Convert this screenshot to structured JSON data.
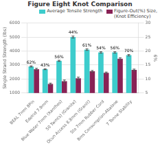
{
  "chart_data": {
    "type": "bar",
    "title": "Figure Eight Knot Comparison",
    "categories": [
      "BEAL 7mm 8Pin",
      "Edelrid 7.9mm",
      "Blue Water 7mm (Xanthos)",
      "50 Twm(s) (Granite)",
      "Ocun Access 8.8mm (Granit)",
      "Sto 7mm Rubber Cord",
      "Bms Consumption-Abalone",
      "7 Tonne Stability"
    ],
    "series": [
      {
        "name": "Average Tensile Strength",
        "color": "#3DCCCC",
        "values": [
          2900,
          2700,
          3300,
          5000,
          4100,
          3900,
          3900,
          3700
        ],
        "errors": [
          40,
          30,
          40,
          70,
          60,
          50,
          50,
          50
        ]
      },
      {
        "name": "Figure-Out(%) Size,\n(Knot Efficiency)",
        "color": "#882255",
        "values": [
          2700,
          1650,
          1850,
          2050,
          2550,
          2450,
          3450,
          2650
        ],
        "errors": [
          70,
          60,
          80,
          90,
          60,
          50,
          70,
          60
        ]
      }
    ],
    "ylabel": "Single Strand Strength (lbs)",
    "y2label": "6%",
    "ylim": [
      1000,
      6000
    ],
    "yticks": [
      1000,
      2000,
      3000,
      4000,
      5000,
      6000
    ],
    "y2lim": [
      5,
      30
    ],
    "y2ticks": [
      5,
      10,
      15,
      20,
      25,
      30
    ],
    "annotations": [
      {
        "category": "BEAL 7mm 8Pin",
        "series": "Average Tensile Strength",
        "text": "62%"
      },
      {
        "category": "Edelrid 7.9mm",
        "series": "Average Tensile Strength",
        "text": "43%"
      },
      {
        "category": "Blue Water 7mm (Xanthos)",
        "series": "Average Tensile Strength",
        "text": "56%"
      },
      {
        "category": "50 Twm(s) (Granite)",
        "series": "Average Tensile Strength",
        "text": "44%"
      },
      {
        "category": "Ocun Access 8.8mm (Granit)",
        "series": "Average Tensile Strength",
        "text": "61%"
      },
      {
        "category": "Sto 7mm Rubber Cord",
        "series": "Average Tensile Strength",
        "text": "54%"
      },
      {
        "category": "Bms Consumption-Abalone",
        "series": "Average Tensile Strength",
        "text": "56%"
      },
      {
        "category": "7 Tonne Stability",
        "series": "Average Tensile Strength",
        "text": "70%"
      }
    ],
    "grid": true,
    "legend": "upper right"
  }
}
